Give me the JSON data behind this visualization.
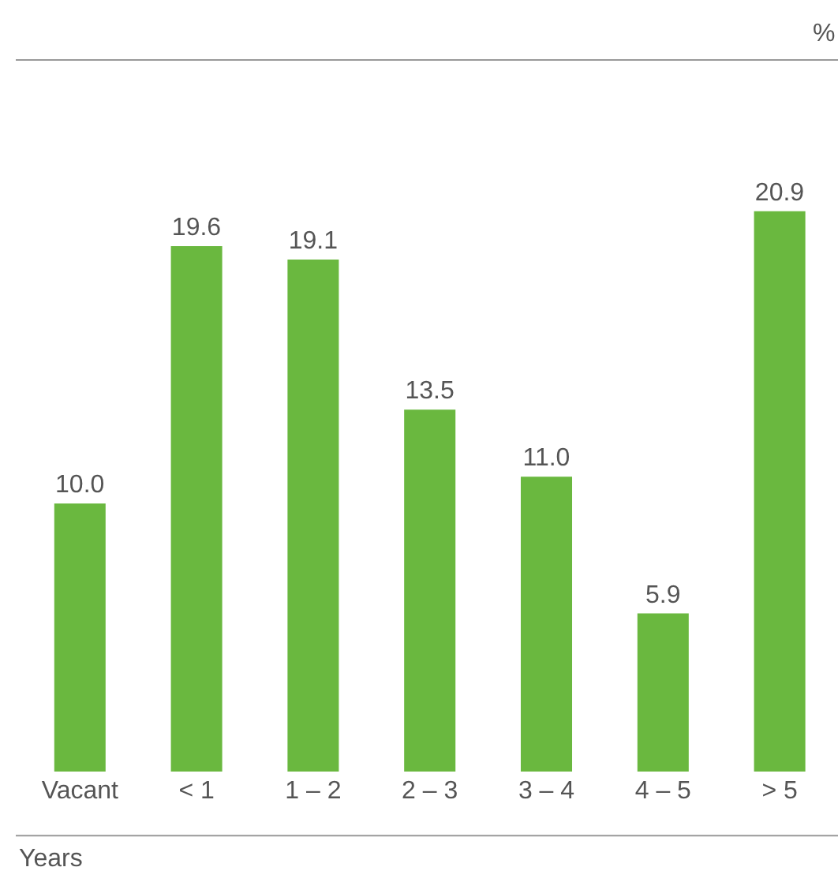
{
  "chart_data": {
    "type": "bar",
    "xlabel": "Years",
    "annotations": [
      "%"
    ],
    "categories": [
      "Vacant",
      "< 1",
      "1 – 2",
      "2 – 3",
      "3 – 4",
      "4 – 5",
      "> 5"
    ],
    "values": [
      10.0,
      19.6,
      19.1,
      13.5,
      11.0,
      5.9,
      20.9
    ],
    "value_labels": [
      "10.0",
      "19.6",
      "19.1",
      "13.5",
      "11.0",
      "5.9",
      "20.9"
    ],
    "color": "#6ab83f"
  }
}
